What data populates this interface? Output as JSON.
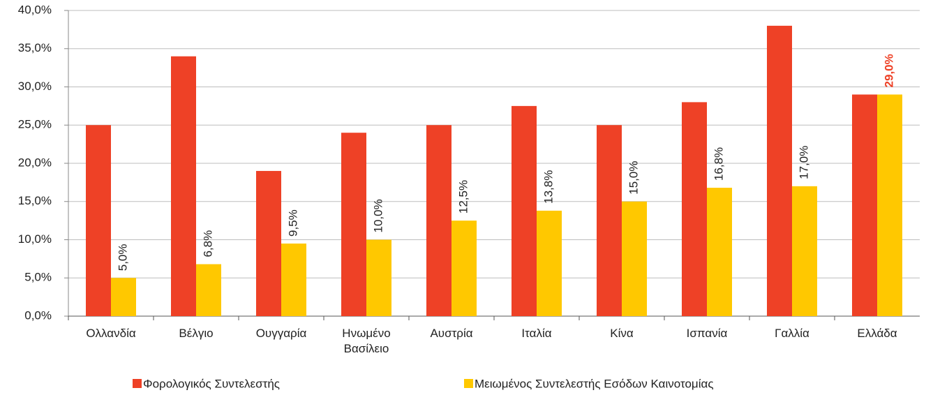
{
  "chart_data": {
    "type": "bar",
    "categories": [
      "Ολλανδία",
      "Βέλγιο",
      "Ουγγαρία",
      "Ηνωμένο Βασίλειο",
      "Αυστρία",
      "Ιταλία",
      "Κίνα",
      "Ισπανία",
      "Γαλλία",
      "Ελλάδα"
    ],
    "series": [
      {
        "name": "Φορολογικός Συντελεστής",
        "color": "#ee4126",
        "values": [
          25,
          34,
          19,
          24,
          25,
          27.5,
          25,
          28,
          38,
          29
        ]
      },
      {
        "name": "Μειωμένος Συντελεστής Εσόδων Καινοτομίας",
        "color": "#ffc800",
        "values": [
          5,
          6.8,
          9.5,
          10,
          12.5,
          13.8,
          15,
          16.8,
          17,
          29
        ],
        "value_labels": [
          "5,0%",
          "6,8%",
          "9,5%",
          "10,0%",
          "12,5%",
          "13,8%",
          "15,0%",
          "16,8%",
          "17,0%",
          "29,0%"
        ],
        "value_label_colors": [
          "#222",
          "#222",
          "#222",
          "#222",
          "#222",
          "#222",
          "#222",
          "#222",
          "#222",
          "#ee4126"
        ]
      }
    ],
    "ylim": [
      0,
      40
    ],
    "yticks": [
      {
        "value": 0,
        "label": "0,0%"
      },
      {
        "value": 5,
        "label": "5,0%"
      },
      {
        "value": 10,
        "label": "10,0%"
      },
      {
        "value": 15,
        "label": "15,0%"
      },
      {
        "value": 20,
        "label": "20,0%"
      },
      {
        "value": 25,
        "label": "25,0%"
      },
      {
        "value": 30,
        "label": "30,0%"
      },
      {
        "value": 35,
        "label": "35,0%"
      },
      {
        "value": 40,
        "label": "40,0%"
      }
    ],
    "grid": true,
    "legend": "bottom"
  }
}
